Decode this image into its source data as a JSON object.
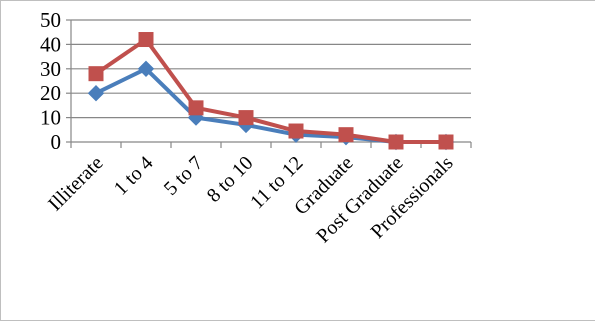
{
  "chart_data": {
    "type": "line",
    "categories": [
      "Illiterate",
      "1 to 4",
      "5 to 7",
      "8 to 10",
      "11 to 12",
      "Graduate",
      "Post Graduate",
      "Professionals"
    ],
    "series": [
      {
        "values": [
          20,
          30,
          10,
          7,
          3,
          2,
          0,
          0
        ],
        "color": "#4a7ebb",
        "marker": "diamond"
      },
      {
        "values": [
          28,
          42,
          14,
          10,
          4.5,
          3,
          0,
          0
        ],
        "color": "#c0504d",
        "marker": "square"
      }
    ],
    "y_ticks": [
      "0",
      "10",
      "20",
      "30",
      "40",
      "50"
    ],
    "ylim": [
      0,
      50
    ],
    "grid": true,
    "legend": "none"
  }
}
